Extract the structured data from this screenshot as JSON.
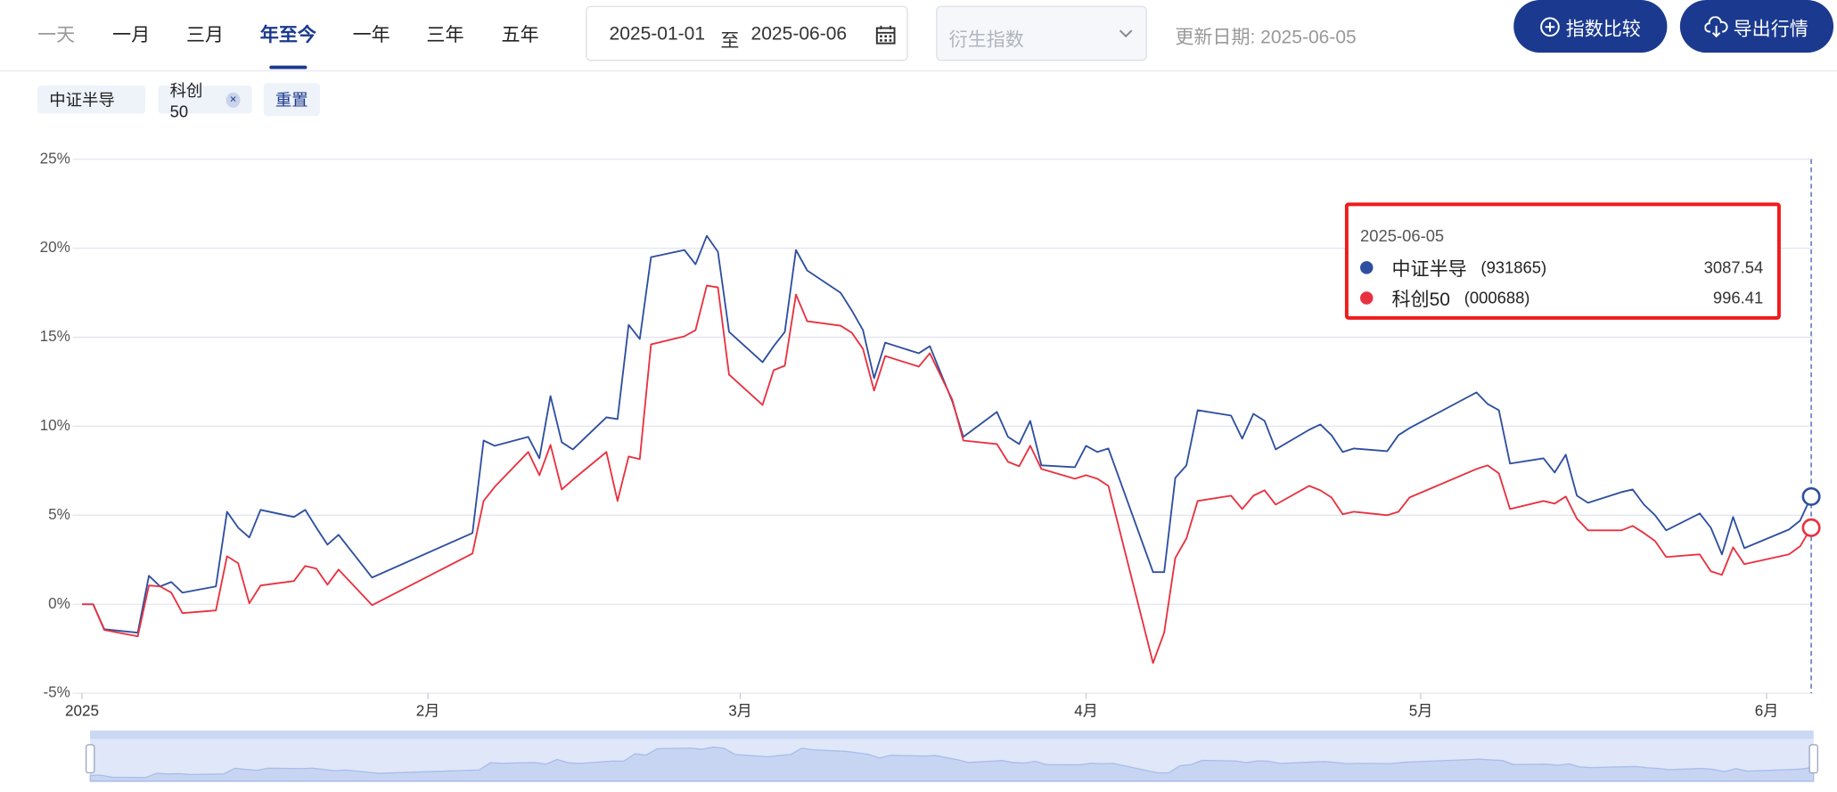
{
  "tabs": {
    "items": [
      "一天",
      "一月",
      "三月",
      "年至今",
      "一年",
      "三年",
      "五年"
    ],
    "active": 3
  },
  "date_range": {
    "start": "2025-01-01",
    "separator": "至",
    "end": "2025-06-06"
  },
  "select_placeholder": "衍生指数",
  "update_date": "更新日期: 2025-06-05",
  "buttons": [
    "指数比较",
    "导出行情"
  ],
  "tags": [
    {
      "label": "中证半导",
      "removable": false
    },
    {
      "label": "科创50",
      "removable": true
    }
  ],
  "reset": "重置",
  "chart_data": {
    "type": "line",
    "x": [
      "2025-01-01",
      "2025-01-02",
      "2025-01-03",
      "2025-01-06",
      "2025-01-07",
      "2025-01-08",
      "2025-01-09",
      "2025-01-10",
      "2025-01-13",
      "2025-01-14",
      "2025-01-15",
      "2025-01-16",
      "2025-01-17",
      "2025-01-20",
      "2025-01-21",
      "2025-01-22",
      "2025-01-23",
      "2025-01-24",
      "2025-01-27",
      "2025-02-05",
      "2025-02-06",
      "2025-02-07",
      "2025-02-10",
      "2025-02-11",
      "2025-02-12",
      "2025-02-13",
      "2025-02-14",
      "2025-02-17",
      "2025-02-18",
      "2025-02-19",
      "2025-02-20",
      "2025-02-21",
      "2025-02-24",
      "2025-02-25",
      "2025-02-26",
      "2025-02-27",
      "2025-02-28",
      "2025-03-03",
      "2025-03-04",
      "2025-03-05",
      "2025-03-06",
      "2025-03-07",
      "2025-03-10",
      "2025-03-11",
      "2025-03-12",
      "2025-03-13",
      "2025-03-14",
      "2025-03-17",
      "2025-03-18",
      "2025-03-20",
      "2025-03-21",
      "2025-03-24",
      "2025-03-25",
      "2025-03-26",
      "2025-03-27",
      "2025-03-28",
      "2025-03-31",
      "2025-04-01",
      "2025-04-02",
      "2025-04-03",
      "2025-04-07",
      "2025-04-08",
      "2025-04-09",
      "2025-04-10",
      "2025-04-11",
      "2025-04-14",
      "2025-04-15",
      "2025-04-16",
      "2025-04-17",
      "2025-04-18",
      "2025-04-21",
      "2025-04-22",
      "2025-04-23",
      "2025-04-24",
      "2025-04-25",
      "2025-04-28",
      "2025-04-29",
      "2025-04-30",
      "2025-05-06",
      "2025-05-07",
      "2025-05-08",
      "2025-05-09",
      "2025-05-12",
      "2025-05-13",
      "2025-05-14",
      "2025-05-15",
      "2025-05-16",
      "2025-05-19",
      "2025-05-20",
      "2025-05-21",
      "2025-05-22",
      "2025-05-23",
      "2025-05-26",
      "2025-05-27",
      "2025-05-28",
      "2025-05-29",
      "2025-05-30",
      "2025-06-03",
      "2025-06-04",
      "2025-06-05"
    ],
    "series": [
      {
        "name": "中证半导",
        "color": "#2e4f9f",
        "values": [
          0,
          0,
          -1.4,
          -1.6,
          1.6,
          1.0,
          1.25,
          0.65,
          1.0,
          5.2,
          4.3,
          3.75,
          5.3,
          4.9,
          5.3,
          4.3,
          3.35,
          3.9,
          1.5,
          4.0,
          9.2,
          8.9,
          9.4,
          8.2,
          11.7,
          9.1,
          8.7,
          10.5,
          10.4,
          15.7,
          14.9,
          19.5,
          19.9,
          19.1,
          20.7,
          19.8,
          15.3,
          13.6,
          14.5,
          15.3,
          19.9,
          18.75,
          17.5,
          16.5,
          15.4,
          12.7,
          14.7,
          14.1,
          14.5,
          11.4,
          9.4,
          10.8,
          9.4,
          9.0,
          10.3,
          7.8,
          7.7,
          8.9,
          8.55,
          8.75,
          1.8,
          1.8,
          7.1,
          7.8,
          10.9,
          10.6,
          9.3,
          10.7,
          10.3,
          8.7,
          9.8,
          10.1,
          9.5,
          8.55,
          8.75,
          8.6,
          9.5,
          9.9,
          11.9,
          11.25,
          10.9,
          7.9,
          8.2,
          7.4,
          8.4,
          6.1,
          5.7,
          6.3,
          6.45,
          5.6,
          5.0,
          4.15,
          5.1,
          4.3,
          2.8,
          4.9,
          3.15,
          4.2,
          4.7,
          6.05
        ]
      },
      {
        "name": "科创50",
        "color": "#e8313f",
        "values": [
          0,
          0,
          -1.45,
          -1.8,
          1.05,
          1.0,
          0.65,
          -0.5,
          -0.35,
          2.7,
          2.3,
          0.05,
          1.05,
          1.3,
          2.15,
          2.0,
          1.1,
          1.95,
          -0.05,
          2.85,
          5.8,
          6.6,
          8.55,
          7.25,
          8.95,
          6.45,
          7.0,
          8.55,
          5.8,
          8.3,
          8.15,
          14.6,
          15.05,
          15.4,
          17.9,
          17.8,
          12.9,
          11.2,
          13.15,
          13.4,
          17.4,
          15.9,
          15.65,
          15.25,
          14.35,
          12.0,
          13.95,
          13.35,
          14.1,
          11.5,
          9.2,
          9.0,
          8.0,
          7.75,
          8.9,
          7.6,
          7.05,
          7.25,
          7.05,
          6.65,
          -3.3,
          -1.6,
          2.6,
          3.7,
          5.8,
          6.1,
          5.35,
          6.1,
          6.4,
          5.6,
          6.65,
          6.4,
          6.0,
          5.05,
          5.2,
          5.0,
          5.2,
          6.0,
          7.6,
          7.8,
          7.35,
          5.35,
          5.8,
          5.65,
          6.05,
          4.8,
          4.15,
          4.15,
          4.4,
          4.0,
          3.55,
          2.65,
          2.8,
          1.85,
          1.65,
          3.2,
          2.25,
          2.8,
          3.25,
          4.3
        ]
      }
    ],
    "xlim": [
      "2025-01-01",
      "2025-06-05"
    ],
    "xticks": [
      {
        "value": "2025-01-01",
        "label": "2025"
      },
      {
        "value": "2025-02-01",
        "label": "2月"
      },
      {
        "value": "2025-03-01",
        "label": "3月"
      },
      {
        "value": "2025-04-01",
        "label": "4月"
      },
      {
        "value": "2025-05-01",
        "label": "5月"
      },
      {
        "value": "2025-06-01",
        "label": "6月"
      }
    ],
    "ylim": [
      -5,
      25
    ],
    "yticks": [
      {
        "value": -5,
        "label": "-5%"
      },
      {
        "value": 0,
        "label": "0%"
      },
      {
        "value": 5,
        "label": "5%"
      },
      {
        "value": 10,
        "label": "10%"
      },
      {
        "value": 15,
        "label": "15%"
      },
      {
        "value": 20,
        "label": "20%"
      },
      {
        "value": 25,
        "label": "25%"
      }
    ],
    "grid": true,
    "tooltip": {
      "date": "2025-06-05",
      "items": [
        {
          "code": "(931865)",
          "value": 3087.54
        },
        {
          "code": "(000688)",
          "value": 996.41
        }
      ]
    }
  }
}
